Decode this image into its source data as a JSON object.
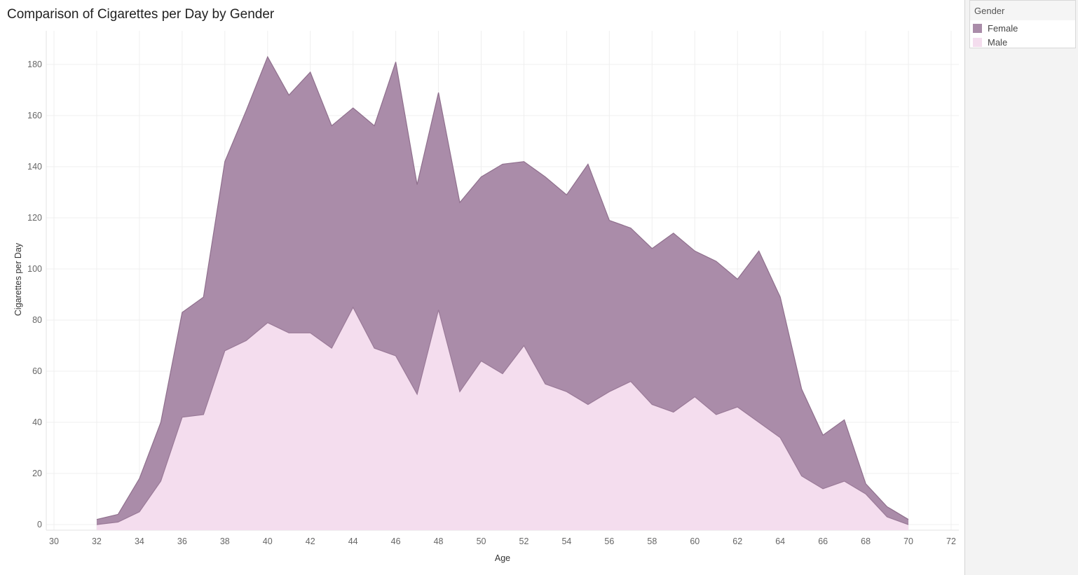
{
  "title": "Comparison of Cigarettes per Day by Gender",
  "legend": {
    "title": "Gender",
    "items": [
      {
        "label": "Female",
        "color": "#aa8ca9"
      },
      {
        "label": "Male",
        "color": "#f4ddee"
      }
    ]
  },
  "chart_data": {
    "type": "area",
    "stacked": true,
    "title": "Comparison of Cigarettes per Day by Gender",
    "xlabel": "Age",
    "ylabel": "Cigarettes per Day",
    "xlim": [
      30,
      72
    ],
    "ylim": [
      0,
      190
    ],
    "xticks": [
      30,
      32,
      34,
      36,
      38,
      40,
      42,
      44,
      46,
      48,
      50,
      52,
      54,
      56,
      58,
      60,
      62,
      64,
      66,
      68,
      70,
      72
    ],
    "yticks": [
      0,
      20,
      40,
      60,
      80,
      100,
      120,
      140,
      160,
      180
    ],
    "grid": true,
    "legend_position": "top-right",
    "x": [
      32,
      33,
      34,
      35,
      36,
      37,
      38,
      39,
      40,
      41,
      42,
      43,
      44,
      45,
      46,
      47,
      48,
      49,
      50,
      51,
      52,
      53,
      54,
      55,
      56,
      57,
      58,
      59,
      60,
      61,
      62,
      63,
      64,
      65,
      66,
      67,
      68,
      69,
      70
    ],
    "series": [
      {
        "name": "Male",
        "color": "#f4ddee",
        "values": [
          0,
          1,
          5,
          17,
          42,
          43,
          68,
          72,
          79,
          75,
          75,
          69,
          85,
          69,
          66,
          51,
          84,
          52,
          64,
          59,
          70,
          55,
          52,
          47,
          52,
          56,
          47,
          44,
          50,
          43,
          46,
          40,
          34,
          19,
          14,
          17,
          12,
          3,
          0
        ]
      },
      {
        "name": "Female",
        "color": "#aa8ca9",
        "values": [
          2,
          3,
          13,
          23,
          41,
          46,
          74,
          90,
          104,
          93,
          102,
          87,
          78,
          87,
          115,
          82,
          85,
          74,
          72,
          82,
          72,
          81,
          77,
          94,
          67,
          60,
          61,
          70,
          57,
          60,
          50,
          67,
          55,
          34,
          21,
          24,
          4,
          4,
          2
        ]
      }
    ]
  }
}
